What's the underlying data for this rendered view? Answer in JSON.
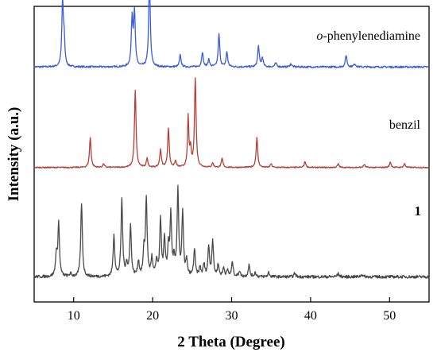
{
  "chart_data": {
    "type": "line",
    "title": "",
    "xlabel": "2 Theta (Degree)",
    "ylabel": "Intensity (a.u.)",
    "xlim": [
      5,
      55
    ],
    "xticks": [
      10,
      20,
      30,
      40,
      50
    ],
    "yticks_shown": false,
    "grid": false,
    "legend": "inline labels, right side",
    "series": [
      {
        "name": "o-phenylenediamine",
        "label_italic_prefix": "o",
        "label_rest": "-phenylenediamine",
        "color": "#3b5bdb",
        "baseline": 0.795,
        "noise": 0.003,
        "peaks": [
          {
            "x": 8.6,
            "h": 0.22,
            "w": 0.12
          },
          {
            "x": 8.8,
            "h": 0.08,
            "w": 0.1
          },
          {
            "x": 17.4,
            "h": 0.16,
            "w": 0.12
          },
          {
            "x": 17.7,
            "h": 0.18,
            "w": 0.12
          },
          {
            "x": 19.6,
            "h": 0.3,
            "w": 0.12
          },
          {
            "x": 23.5,
            "h": 0.04,
            "w": 0.12
          },
          {
            "x": 26.3,
            "h": 0.05,
            "w": 0.12
          },
          {
            "x": 27.1,
            "h": 0.025,
            "w": 0.12
          },
          {
            "x": 28.4,
            "h": 0.11,
            "w": 0.12
          },
          {
            "x": 29.4,
            "h": 0.05,
            "w": 0.12
          },
          {
            "x": 33.4,
            "h": 0.07,
            "w": 0.12
          },
          {
            "x": 33.9,
            "h": 0.03,
            "w": 0.12
          },
          {
            "x": 35.6,
            "h": 0.012,
            "w": 0.15
          },
          {
            "x": 37.5,
            "h": 0.01,
            "w": 0.15
          },
          {
            "x": 44.5,
            "h": 0.04,
            "w": 0.12
          },
          {
            "x": 45.6,
            "h": 0.01,
            "w": 0.15
          }
        ]
      },
      {
        "name": "benzil",
        "color": "#b5403a",
        "baseline": 0.455,
        "noise": 0.002,
        "peaks": [
          {
            "x": 12.1,
            "h": 0.1,
            "w": 0.12
          },
          {
            "x": 13.8,
            "h": 0.012,
            "w": 0.12
          },
          {
            "x": 17.8,
            "h": 0.26,
            "w": 0.12
          },
          {
            "x": 19.3,
            "h": 0.03,
            "w": 0.12
          },
          {
            "x": 21.0,
            "h": 0.06,
            "w": 0.12
          },
          {
            "x": 22.0,
            "h": 0.13,
            "w": 0.12
          },
          {
            "x": 22.9,
            "h": 0.02,
            "w": 0.12
          },
          {
            "x": 24.5,
            "h": 0.17,
            "w": 0.1
          },
          {
            "x": 24.8,
            "h": 0.06,
            "w": 0.1
          },
          {
            "x": 25.4,
            "h": 0.3,
            "w": 0.12
          },
          {
            "x": 27.6,
            "h": 0.015,
            "w": 0.12
          },
          {
            "x": 28.8,
            "h": 0.03,
            "w": 0.12
          },
          {
            "x": 33.2,
            "h": 0.1,
            "w": 0.12
          },
          {
            "x": 35.0,
            "h": 0.012,
            "w": 0.12
          },
          {
            "x": 39.3,
            "h": 0.02,
            "w": 0.12
          },
          {
            "x": 43.5,
            "h": 0.012,
            "w": 0.12
          },
          {
            "x": 46.8,
            "h": 0.01,
            "w": 0.12
          },
          {
            "x": 50.1,
            "h": 0.018,
            "w": 0.12
          },
          {
            "x": 51.9,
            "h": 0.012,
            "w": 0.12
          }
        ]
      },
      {
        "name": "1",
        "label_bold": true,
        "color": "#4a4a4a",
        "baseline": 0.085,
        "noise": 0.005,
        "peaks": [
          {
            "x": 7.8,
            "h": 0.07,
            "w": 0.12
          },
          {
            "x": 8.1,
            "h": 0.18,
            "w": 0.12
          },
          {
            "x": 9.6,
            "h": 0.01,
            "w": 0.12
          },
          {
            "x": 11.0,
            "h": 0.25,
            "w": 0.12
          },
          {
            "x": 15.1,
            "h": 0.14,
            "w": 0.12
          },
          {
            "x": 16.1,
            "h": 0.26,
            "w": 0.12
          },
          {
            "x": 16.7,
            "h": 0.04,
            "w": 0.12
          },
          {
            "x": 17.2,
            "h": 0.17,
            "w": 0.12
          },
          {
            "x": 18.2,
            "h": 0.05,
            "w": 0.12
          },
          {
            "x": 18.9,
            "h": 0.08,
            "w": 0.12
          },
          {
            "x": 19.2,
            "h": 0.26,
            "w": 0.12
          },
          {
            "x": 19.9,
            "h": 0.06,
            "w": 0.12
          },
          {
            "x": 20.5,
            "h": 0.05,
            "w": 0.12
          },
          {
            "x": 21.0,
            "h": 0.19,
            "w": 0.12
          },
          {
            "x": 21.5,
            "h": 0.12,
            "w": 0.12
          },
          {
            "x": 22.0,
            "h": 0.09,
            "w": 0.12
          },
          {
            "x": 22.3,
            "h": 0.2,
            "w": 0.12
          },
          {
            "x": 22.7,
            "h": 0.05,
            "w": 0.12
          },
          {
            "x": 23.2,
            "h": 0.29,
            "w": 0.12
          },
          {
            "x": 23.8,
            "h": 0.21,
            "w": 0.12
          },
          {
            "x": 24.3,
            "h": 0.05,
            "w": 0.12
          },
          {
            "x": 25.3,
            "h": 0.09,
            "w": 0.12
          },
          {
            "x": 26.0,
            "h": 0.03,
            "w": 0.12
          },
          {
            "x": 26.5,
            "h": 0.04,
            "w": 0.12
          },
          {
            "x": 27.1,
            "h": 0.1,
            "w": 0.12
          },
          {
            "x": 27.6,
            "h": 0.12,
            "w": 0.12
          },
          {
            "x": 28.3,
            "h": 0.04,
            "w": 0.12
          },
          {
            "x": 29.0,
            "h": 0.03,
            "w": 0.12
          },
          {
            "x": 29.5,
            "h": 0.02,
            "w": 0.12
          },
          {
            "x": 30.1,
            "h": 0.05,
            "w": 0.12
          },
          {
            "x": 31.0,
            "h": 0.02,
            "w": 0.12
          },
          {
            "x": 32.2,
            "h": 0.04,
            "w": 0.12
          },
          {
            "x": 33.0,
            "h": 0.015,
            "w": 0.12
          },
          {
            "x": 34.7,
            "h": 0.015,
            "w": 0.12
          },
          {
            "x": 38.0,
            "h": 0.012,
            "w": 0.12
          },
          {
            "x": 43.5,
            "h": 0.01,
            "w": 0.15
          },
          {
            "x": 46.5,
            "h": 0.008,
            "w": 0.15
          }
        ]
      }
    ]
  }
}
